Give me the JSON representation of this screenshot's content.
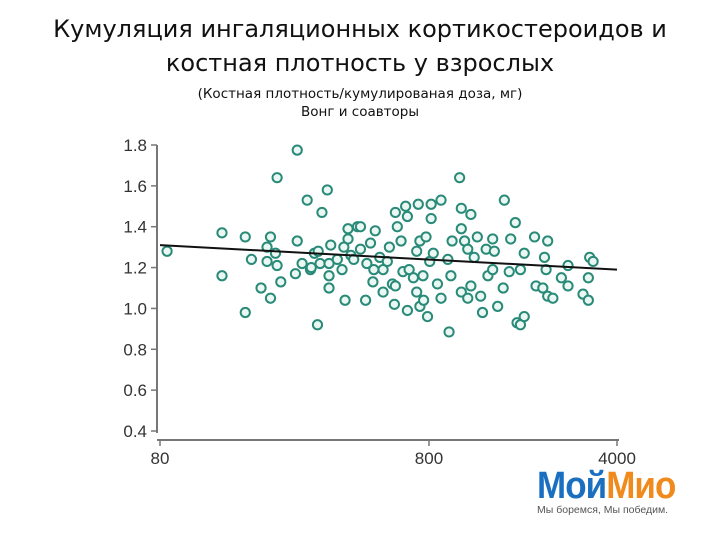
{
  "title": {
    "line1": "Кумуляция ингаляционных кортикостероидов и",
    "line2": "костная плотность у взрослых"
  },
  "subtitle": {
    "line1": "(Костная плотность/кумулированая доза, мг)",
    "line2": "Вонг и соавторы"
  },
  "logo": {
    "part1": "Мой",
    "part2": "Мио",
    "tagline": "Мы боремся, Мы победим.",
    "colors": {
      "part1": "#1a6fc0",
      "part2": "#f08a1c"
    }
  },
  "chart_data": {
    "type": "scatter",
    "xscale": "log",
    "xlim": [
      80,
      4000
    ],
    "ylim": [
      0.4,
      1.8
    ],
    "xticks": [
      80,
      800,
      4000
    ],
    "xtick_labels": [
      "80",
      "800",
      "4000"
    ],
    "yticks": [
      0.4,
      0.6,
      0.8,
      1.0,
      1.2,
      1.4,
      1.6,
      1.8
    ],
    "ytick_labels": [
      "0.4",
      "0.6",
      "0.8",
      "1.0",
      "1.2",
      "1.4",
      "1.6",
      "1.8"
    ],
    "marker_color": "#2a8a78",
    "grid": false,
    "trendline": {
      "x": [
        80,
        4000
      ],
      "y": [
        1.31,
        1.19
      ],
      "color": "#111111"
    },
    "points": [
      [
        85,
        1.28
      ],
      [
        136,
        1.37
      ],
      [
        136,
        1.16
      ],
      [
        166,
        1.35
      ],
      [
        175,
        1.24
      ],
      [
        166,
        0.98
      ],
      [
        190,
        1.1
      ],
      [
        200,
        1.23
      ],
      [
        206,
        1.05
      ],
      [
        206,
        1.35
      ],
      [
        200,
        1.3
      ],
      [
        218,
        1.21
      ],
      [
        215,
        1.27
      ],
      [
        218,
        1.64
      ],
      [
        225,
        1.13
      ],
      [
        259,
        1.775
      ],
      [
        259,
        1.33
      ],
      [
        255,
        1.17
      ],
      [
        282,
        1.53
      ],
      [
        270,
        1.22
      ],
      [
        290,
        1.19
      ],
      [
        292,
        1.2
      ],
      [
        308,
        0.92
      ],
      [
        320,
        1.47
      ],
      [
        300,
        1.27
      ],
      [
        310,
        1.28
      ],
      [
        315,
        1.22
      ],
      [
        335,
        1.58
      ],
      [
        340,
        1.16
      ],
      [
        340,
        1.1
      ],
      [
        345,
        1.31
      ],
      [
        340,
        1.22
      ],
      [
        365,
        1.24
      ],
      [
        380,
        1.19
      ],
      [
        390,
        1.04
      ],
      [
        400,
        1.39
      ],
      [
        400,
        1.34
      ],
      [
        386,
        1.3
      ],
      [
        410,
        1.26
      ],
      [
        434,
        1.4
      ],
      [
        445,
        1.4
      ],
      [
        420,
        1.24
      ],
      [
        445,
        1.29
      ],
      [
        465,
        1.04
      ],
      [
        470,
        1.22
      ],
      [
        485,
        1.32
      ],
      [
        499,
        1.19
      ],
      [
        495,
        1.13
      ],
      [
        505,
        1.38
      ],
      [
        525,
        1.25
      ],
      [
        540,
        1.19
      ],
      [
        560,
        1.23
      ],
      [
        570,
        1.3
      ],
      [
        540,
        1.08
      ],
      [
        585,
        1.12
      ],
      [
        595,
        1.02
      ],
      [
        600,
        1.47
      ],
      [
        610,
        1.4
      ],
      [
        600,
        1.11
      ],
      [
        630,
        1.33
      ],
      [
        640,
        1.18
      ],
      [
        655,
        1.5
      ],
      [
        665,
        1.45
      ],
      [
        675,
        1.19
      ],
      [
        665,
        0.99
      ],
      [
        700,
        1.15
      ],
      [
        720,
        1.08
      ],
      [
        730,
        1.51
      ],
      [
        740,
        1.33
      ],
      [
        720,
        1.28
      ],
      [
        740,
        1.01
      ],
      [
        760,
        1.16
      ],
      [
        780,
        1.35
      ],
      [
        764,
        1.04
      ],
      [
        790,
        0.96
      ],
      [
        805,
        1.23
      ],
      [
        815,
        1.51
      ],
      [
        815,
        1.44
      ],
      [
        830,
        1.27
      ],
      [
        860,
        1.12
      ],
      [
        887,
        1.53
      ],
      [
        887,
        1.05
      ],
      [
        940,
        1.24
      ],
      [
        950,
        0.885
      ],
      [
        965,
        1.16
      ],
      [
        975,
        1.33
      ],
      [
        1040,
        1.64
      ],
      [
        1055,
        1.49
      ],
      [
        1055,
        1.39
      ],
      [
        1055,
        1.08
      ],
      [
        1085,
        1.33
      ],
      [
        1115,
        1.29
      ],
      [
        1145,
        1.46
      ],
      [
        1145,
        1.11
      ],
      [
        1115,
        1.05
      ],
      [
        1178,
        1.25
      ],
      [
        1210,
        1.35
      ],
      [
        1245,
        1.06
      ],
      [
        1265,
        0.98
      ],
      [
        1305,
        1.29
      ],
      [
        1325,
        1.16
      ],
      [
        1380,
        1.34
      ],
      [
        1400,
        1.28
      ],
      [
        1380,
        1.19
      ],
      [
        1440,
        1.01
      ],
      [
        1510,
        1.1
      ],
      [
        1525,
        1.53
      ],
      [
        1590,
        1.18
      ],
      [
        1610,
        1.34
      ],
      [
        1675,
        1.42
      ],
      [
        1700,
        0.93
      ],
      [
        1750,
        0.92
      ],
      [
        1750,
        1.19
      ],
      [
        1808,
        1.27
      ],
      [
        1808,
        0.96
      ],
      [
        1975,
        1.35
      ],
      [
        2000,
        1.11
      ],
      [
        2120,
        1.1
      ],
      [
        2150,
        1.25
      ],
      [
        2180,
        1.19
      ],
      [
        2210,
        1.33
      ],
      [
        2210,
        1.06
      ],
      [
        2310,
        1.05
      ],
      [
        2485,
        1.15
      ],
      [
        2630,
        1.21
      ],
      [
        2630,
        1.11
      ],
      [
        2990,
        1.07
      ],
      [
        3130,
        1.15
      ],
      [
        3130,
        1.04
      ],
      [
        3165,
        1.25
      ],
      [
        3260,
        1.23
      ]
    ]
  }
}
